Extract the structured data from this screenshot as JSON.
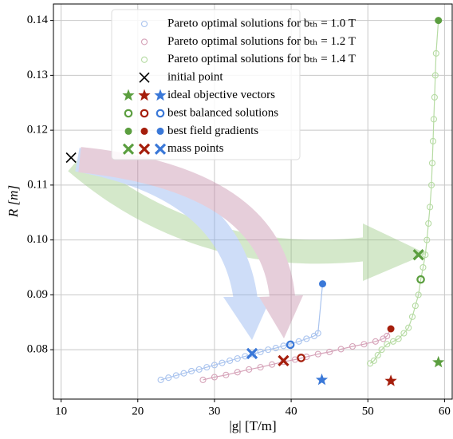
{
  "chart_data": {
    "type": "scatter",
    "x_label": "|g|  [T/m]",
    "y_label": "R [m]",
    "xlim": [
      9,
      61
    ],
    "ylim": [
      0.071,
      0.143
    ],
    "xticks": [
      10,
      20,
      30,
      40,
      50,
      60
    ],
    "yticks": [
      0.08,
      0.09,
      {
        "value": 0.1,
        "label": "0.10"
      },
      0.11,
      0.12,
      0.13,
      0.14
    ],
    "grid": true,
    "legend": "upper center",
    "series": [
      {
        "name": "Pareto optimal solutions for bₜₕ = 1.0 T",
        "marker": "circle-line",
        "color": "#a9c3ee",
        "x": [
          23,
          24,
          25,
          26,
          27,
          28,
          29,
          30,
          31,
          32,
          33,
          34,
          35,
          36,
          37,
          38,
          39,
          40,
          41,
          42,
          43,
          43.5,
          44.1
        ],
        "values": [
          0.0745,
          0.0749,
          0.0753,
          0.0757,
          0.0761,
          0.0764,
          0.0768,
          0.0772,
          0.0776,
          0.078,
          0.0784,
          0.0788,
          0.0792,
          0.0796,
          0.08,
          0.0803,
          0.0807,
          0.0811,
          0.0815,
          0.082,
          0.0825,
          0.083,
          0.092
        ]
      },
      {
        "name": "Pareto optimal solutions for bₜₕ = 1.2 T",
        "marker": "circle-line",
        "color": "#d6a3b9",
        "x": [
          28.5,
          30,
          31.5,
          33,
          34.5,
          36,
          37.5,
          39,
          40.5,
          42,
          43.5,
          45,
          46.5,
          48,
          49.5,
          51,
          52,
          52.5,
          53
        ],
        "values": [
          0.0745,
          0.075,
          0.0754,
          0.0759,
          0.0764,
          0.0768,
          0.0773,
          0.0778,
          0.0782,
          0.0787,
          0.0792,
          0.0796,
          0.0801,
          0.0806,
          0.081,
          0.0815,
          0.082,
          0.0825,
          0.0838
        ]
      },
      {
        "name": "Pareto optimal solutions for bₜₕ = 1.4 T",
        "marker": "circle-line",
        "color": "#b6dba3",
        "x": [
          50.3,
          50.8,
          51.3,
          51.8,
          52.5,
          53.3,
          54,
          54.7,
          55.3,
          55.8,
          56.2,
          56.6,
          56.9,
          57.2,
          57.5,
          57.7,
          57.9,
          58.1,
          58.3,
          58.4,
          58.5,
          58.6,
          58.7,
          58.8,
          58.9,
          59.2
        ],
        "values": [
          0.0775,
          0.078,
          0.079,
          0.08,
          0.081,
          0.0815,
          0.082,
          0.083,
          0.084,
          0.086,
          0.088,
          0.09,
          0.0928,
          0.095,
          0.0973,
          0.1,
          0.103,
          0.106,
          0.11,
          0.114,
          0.118,
          0.122,
          0.126,
          0.13,
          0.134,
          0.14
        ]
      },
      {
        "name": "initial point",
        "marker": "x",
        "colors": [
          "#000000"
        ],
        "x": [
          11.3
        ],
        "values": [
          0.115
        ]
      },
      {
        "name": "ideal objective vectors",
        "marker": "star",
        "colors": [
          "#5b9e3f",
          "#a51e0c",
          "#3a78d8"
        ],
        "x": [
          59.2,
          53,
          44
        ],
        "values": [
          0.0777,
          0.0743,
          0.0745
        ]
      },
      {
        "name": "best balanced solutions",
        "marker": "ring",
        "colors": [
          "#5b9e3f",
          "#a51e0c",
          "#3a78d8"
        ],
        "x": [
          56.9,
          41.3,
          39.9
        ],
        "values": [
          0.0928,
          0.0785,
          0.0809
        ]
      },
      {
        "name": "best field gradients",
        "marker": "dot",
        "colors": [
          "#5b9e3f",
          "#a51e0c",
          "#3a78d8"
        ],
        "x": [
          59.2,
          53,
          44.1
        ],
        "values": [
          0.14,
          0.0838,
          0.092
        ]
      },
      {
        "name": "mass points",
        "marker": "cross",
        "colors": [
          "#5b9e3f",
          "#a51e0c",
          "#3a78d8"
        ],
        "x": [
          56.6,
          39,
          34.9
        ],
        "values": [
          0.0973,
          0.078,
          0.0793
        ]
      }
    ]
  }
}
